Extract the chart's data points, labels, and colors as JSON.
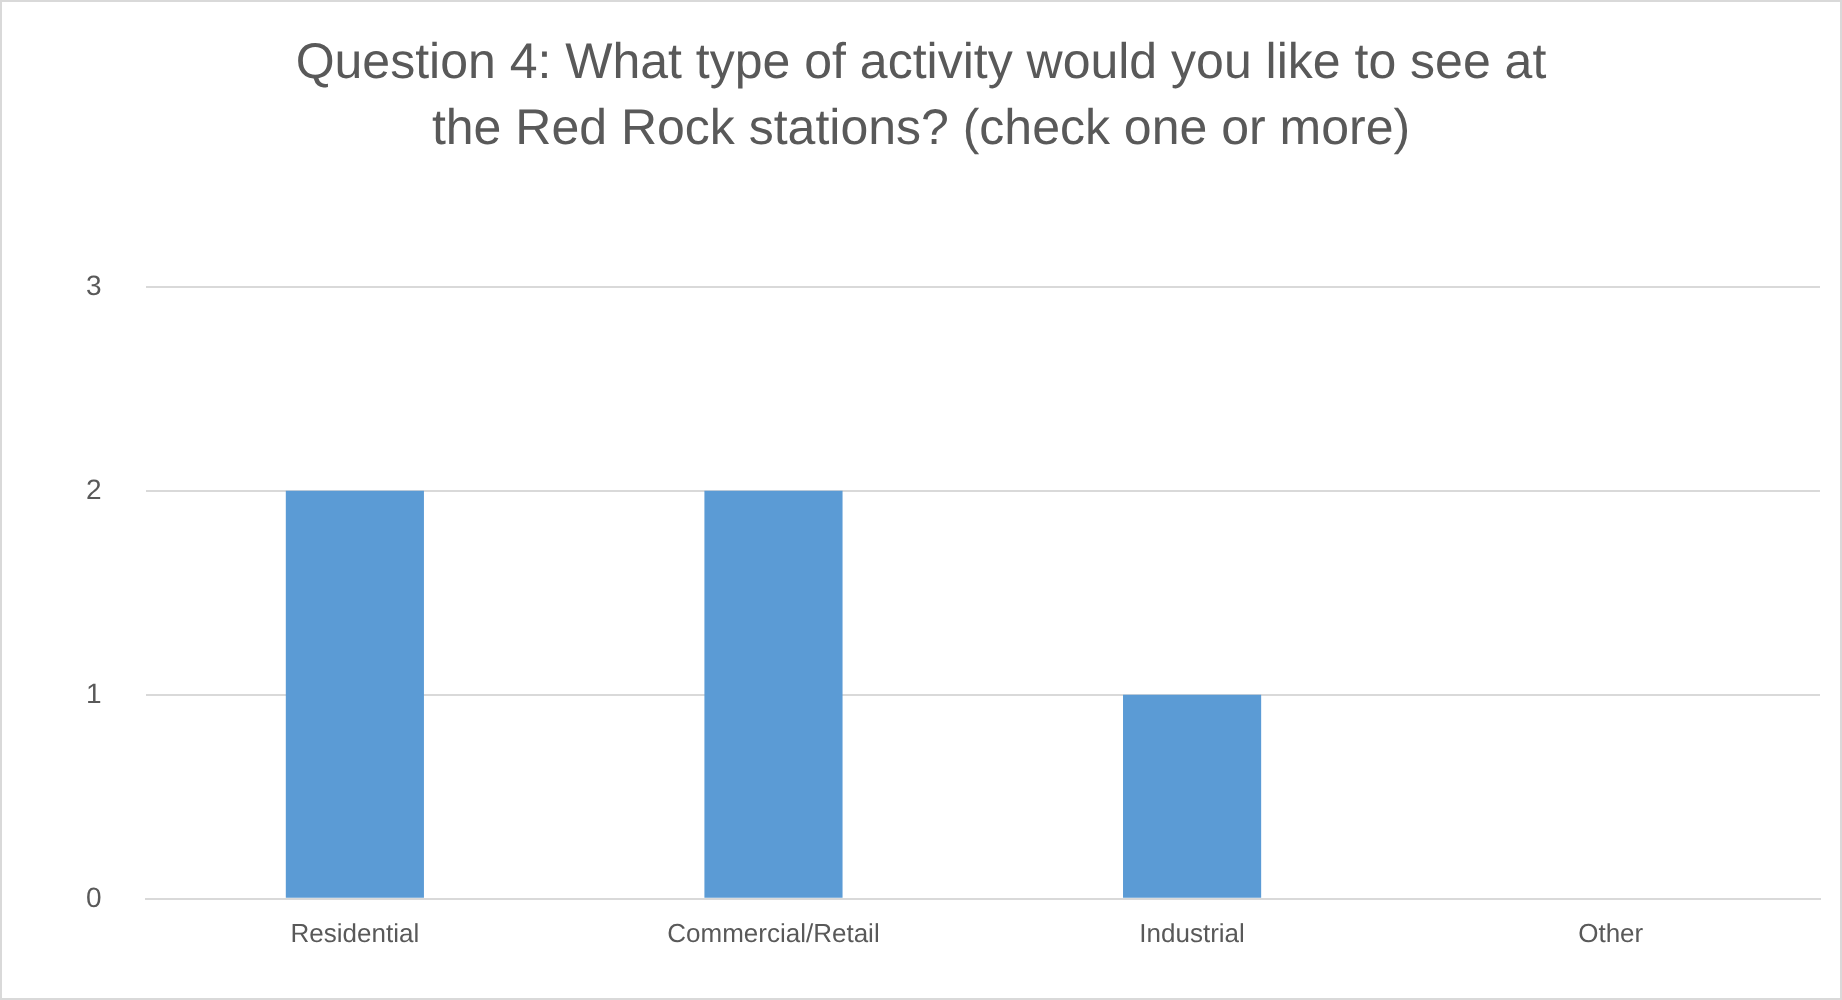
{
  "chart_data": {
    "type": "bar",
    "title": "Question 4: What type of activity would you like to see at the Red Rock stations? (check one or more)",
    "categories": [
      "Residential",
      "Commercial/Retail",
      "Industrial",
      "Other"
    ],
    "values": [
      2,
      2,
      1,
      0
    ],
    "color": "#5b9bd5",
    "ylim": [
      0,
      3
    ],
    "yticks": [
      0,
      1,
      2,
      3
    ],
    "grid": "y"
  }
}
